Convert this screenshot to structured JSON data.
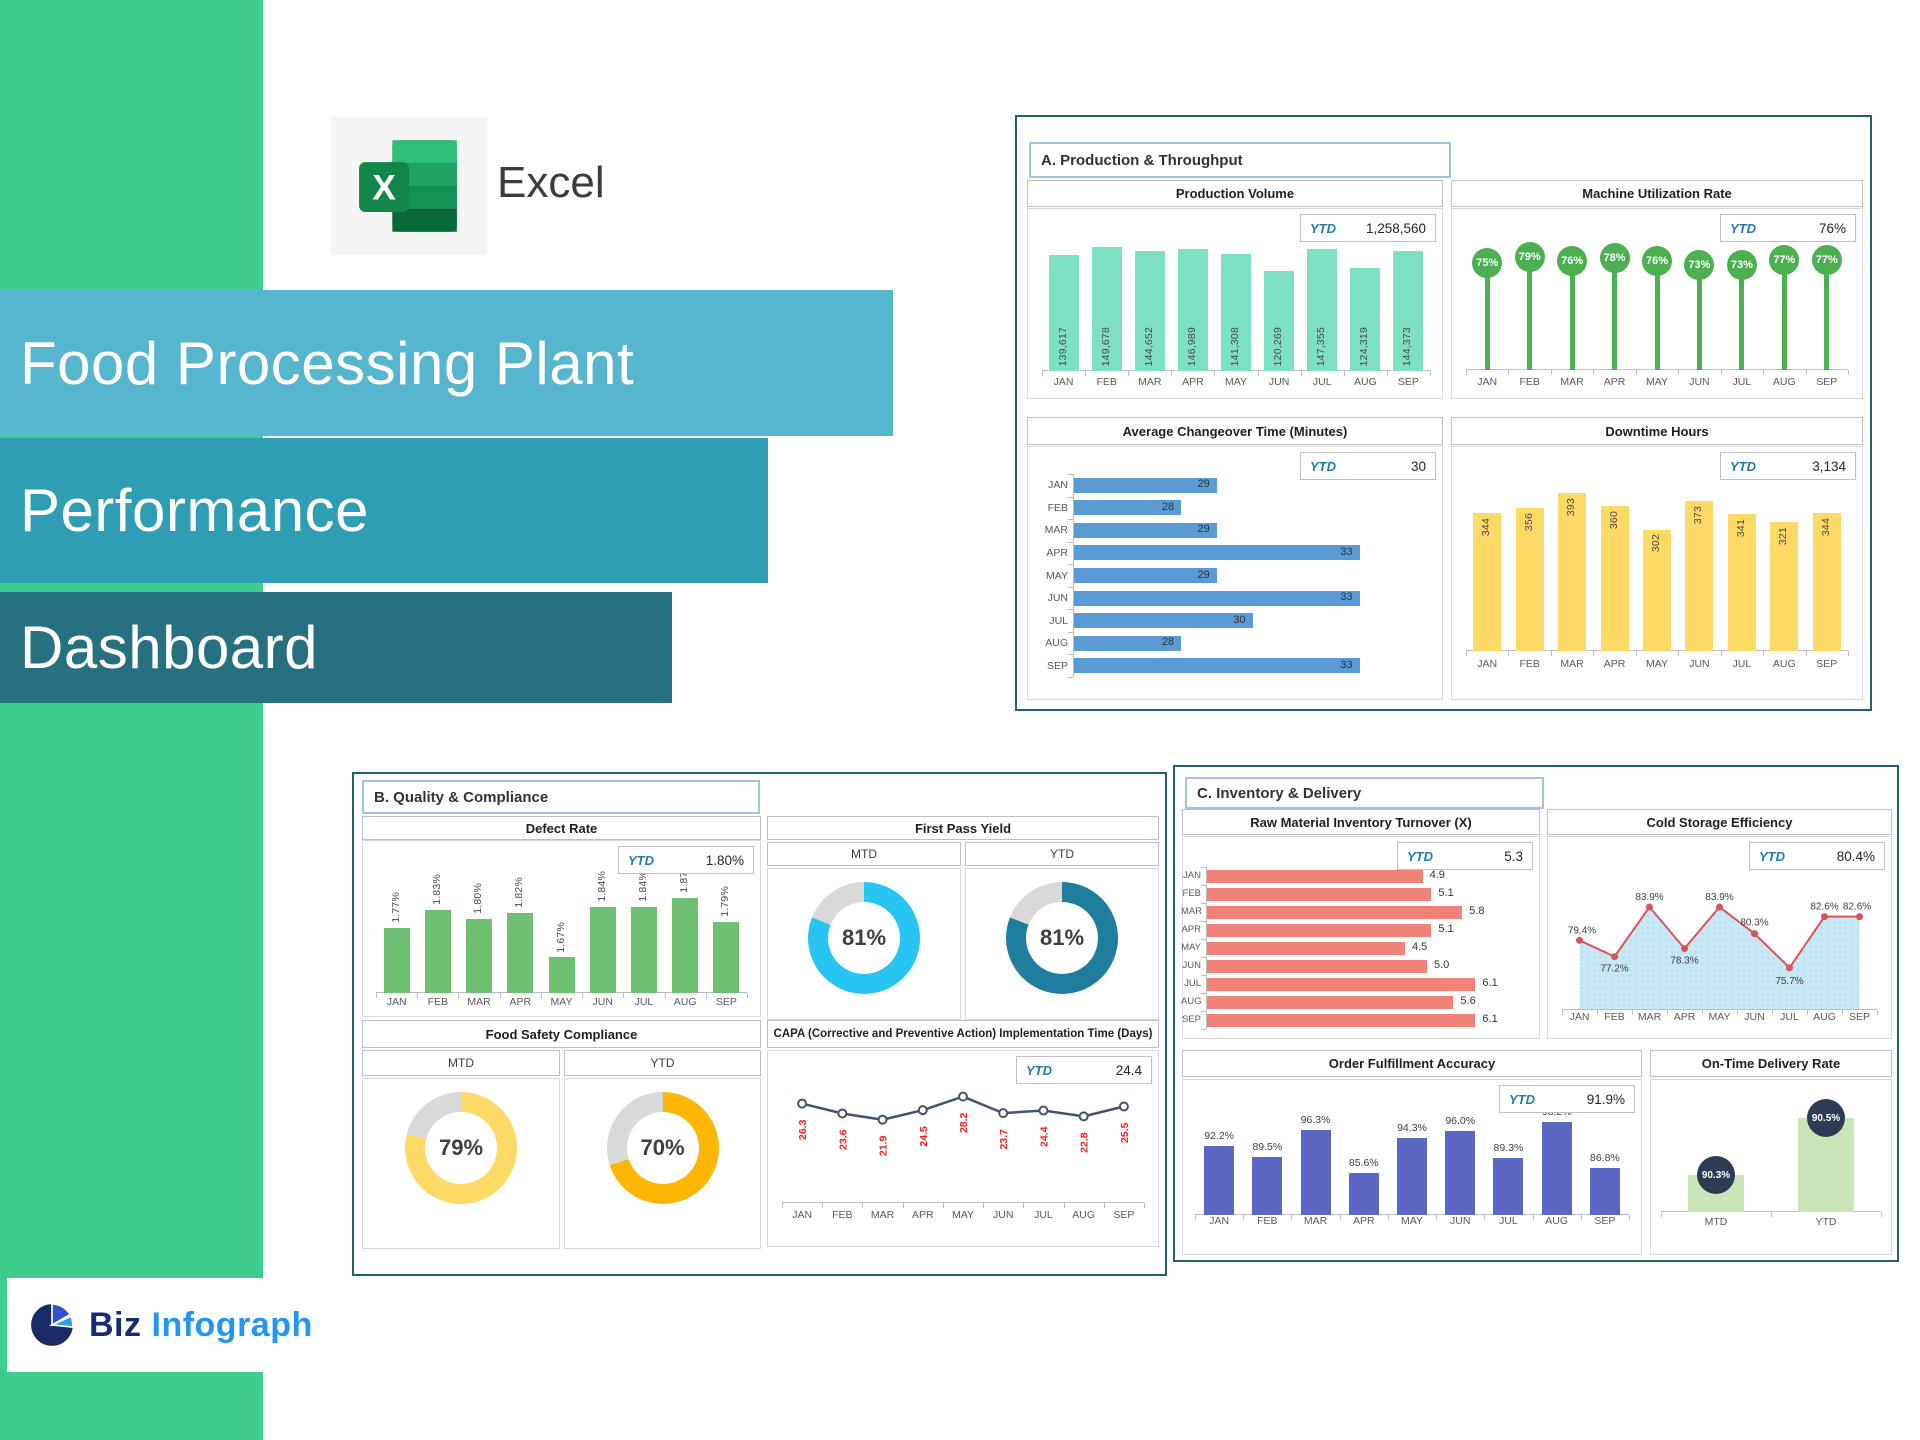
{
  "excel": {
    "label": "Excel",
    "logo_letter": "X"
  },
  "title_banner": {
    "line1": "Food Processing Plant",
    "line2": "Performance",
    "line3": "Dashboard"
  },
  "footer_logo": {
    "word1": "Biz",
    "word2": "Infograph"
  },
  "ytd_label": "YTD",
  "mtd_label": "MTD",
  "months": [
    "JAN",
    "FEB",
    "MAR",
    "APR",
    "MAY",
    "JUN",
    "JUL",
    "AUG",
    "SEP"
  ],
  "sections": {
    "a": {
      "header": "A. Production & Throughput"
    },
    "b": {
      "header": "B. Quality & Compliance"
    },
    "c": {
      "header": "C. Inventory & Delivery"
    }
  },
  "colors": {
    "sidebar_green": "#3ECD8C",
    "band1_blue": "#55B6CE",
    "band2_teal": "#2F9DB3",
    "band3_dark_teal": "#27707F",
    "panel_border": "#23616F",
    "section_border": "#9DC3E6",
    "ytd_text": "#1E7BAA"
  },
  "chart_data": [
    {
      "id": "production_volume",
      "type": "bar",
      "title": "Production Volume",
      "ytd": "1,258,560",
      "categories": [
        "JAN",
        "FEB",
        "MAR",
        "APR",
        "MAY",
        "JUN",
        "JUL",
        "AUG",
        "SEP"
      ],
      "values": [
        139617,
        149678,
        144652,
        146989,
        141308,
        120269,
        147355,
        124319,
        144373
      ],
      "labels": [
        "139,617",
        "149,678",
        "144,652",
        "146,989",
        "141,308",
        "120,269",
        "147,355",
        "124,319",
        "144,373"
      ],
      "color": "#7EE0C3",
      "ylim": [
        0,
        160000
      ],
      "label_pos": "in-bottom"
    },
    {
      "id": "machine_utilization",
      "type": "lollipop",
      "title": "Machine Utilization Rate",
      "ytd": "76%",
      "categories": [
        "JAN",
        "FEB",
        "MAR",
        "APR",
        "MAY",
        "JUN",
        "JUL",
        "AUG",
        "SEP"
      ],
      "values": [
        75,
        79,
        76,
        78,
        76,
        73,
        73,
        77,
        77
      ],
      "labels": [
        "75%",
        "79%",
        "76%",
        "78%",
        "76%",
        "73%",
        "73%",
        "77%",
        "77%"
      ],
      "color": "#4CAF50",
      "ylim": [
        0,
        90
      ]
    },
    {
      "id": "changeover_time",
      "type": "hbar",
      "title": "Average Changeover Time (Minutes)",
      "ytd": "30",
      "categories": [
        "JAN",
        "FEB",
        "MAR",
        "APR",
        "MAY",
        "JUN",
        "JUL",
        "AUG",
        "SEP"
      ],
      "values": [
        29,
        28,
        29,
        33,
        29,
        33,
        30,
        28,
        33
      ],
      "labels": [
        "29",
        "28",
        "29",
        "33",
        "29",
        "33",
        "30",
        "28",
        "33"
      ],
      "color": "#5B9BD5",
      "xlim": [
        25,
        35
      ],
      "label_pos": "inside"
    },
    {
      "id": "downtime_hours",
      "type": "bar",
      "title": "Downtime Hours",
      "ytd": "3,134",
      "categories": [
        "JAN",
        "FEB",
        "MAR",
        "APR",
        "MAY",
        "JUN",
        "JUL",
        "AUG",
        "SEP"
      ],
      "values": [
        344,
        356,
        393,
        360,
        302,
        373,
        341,
        321,
        344
      ],
      "labels": [
        "344",
        "356",
        "393",
        "360",
        "302",
        "373",
        "341",
        "321",
        "344"
      ],
      "color": "#FFD966",
      "ylim": [
        0,
        430
      ],
      "label_pos": "in-top"
    },
    {
      "id": "defect_rate",
      "type": "bar",
      "title": "Defect Rate",
      "ytd": "1.80%",
      "categories": [
        "JAN",
        "FEB",
        "MAR",
        "APR",
        "MAY",
        "JUN",
        "JUL",
        "AUG",
        "SEP"
      ],
      "values": [
        1.77,
        1.83,
        1.8,
        1.82,
        1.67,
        1.84,
        1.84,
        1.87,
        1.79
      ],
      "labels": [
        "1.77%",
        "1.83%",
        "1.80%",
        "1.82%",
        "1.67%",
        "1.84%",
        "1.84%",
        "1.87%",
        "1.79%"
      ],
      "color": "#6FBF72",
      "ylim": [
        1.55,
        1.9
      ],
      "label_pos": "above-rot"
    },
    {
      "id": "fpy_mtd",
      "type": "donut",
      "title": "First Pass Yield",
      "period": "MTD",
      "value": 81,
      "label": "81%",
      "color": "#29C5F2"
    },
    {
      "id": "fpy_ytd",
      "type": "donut",
      "period": "YTD",
      "value": 81,
      "label": "81%",
      "color": "#1F7E9E"
    },
    {
      "id": "fsc_mtd",
      "type": "donut",
      "title": "Food Safety Compliance",
      "period": "MTD",
      "value": 79,
      "label": "79%",
      "color": "#FFD966"
    },
    {
      "id": "fsc_ytd",
      "type": "donut",
      "period": "YTD",
      "value": 70,
      "label": "70%",
      "color": "#FFB600"
    },
    {
      "id": "capa_time",
      "type": "line",
      "title": "CAPA (Corrective and Preventive Action) Implementation Time (Days)",
      "ytd": "24.4",
      "categories": [
        "JAN",
        "FEB",
        "MAR",
        "APR",
        "MAY",
        "JUN",
        "JUL",
        "AUG",
        "SEP"
      ],
      "values": [
        26.3,
        23.6,
        21.9,
        24.5,
        28.2,
        23.7,
        24.4,
        22.8,
        25.5
      ],
      "labels": [
        "26.3",
        "23.6",
        "21.9",
        "24.5",
        "28.2",
        "23.7",
        "24.4",
        "22.8",
        "25.5"
      ],
      "line_color": "#44546A",
      "label_color": "#FF1A1A",
      "ylim": [
        0,
        30
      ]
    },
    {
      "id": "inventory_turnover",
      "type": "hbar",
      "title": "Raw Material Inventory Turnover (X)",
      "ytd": "5.3",
      "categories": [
        "JAN",
        "FEB",
        "MAR",
        "APR",
        "MAY",
        "JUN",
        "JUL",
        "AUG",
        "SEP"
      ],
      "values": [
        4.9,
        5.1,
        5.8,
        5.1,
        4.5,
        5.0,
        6.1,
        5.6,
        6.1
      ],
      "labels": [
        "4.9",
        "5.1",
        "5.8",
        "5.1",
        "4.5",
        "5.0",
        "6.1",
        "5.6",
        "6.1"
      ],
      "color": "#F0827A",
      "xlim": [
        0,
        7.25
      ],
      "label_pos": "outside"
    },
    {
      "id": "cold_storage",
      "type": "area",
      "title": "Cold Storage Efficiency",
      "ytd": "80.4%",
      "categories": [
        "JAN",
        "FEB",
        "MAR",
        "APR",
        "MAY",
        "JUN",
        "JUL",
        "AUG",
        "SEP"
      ],
      "values": [
        79.4,
        77.2,
        83.9,
        78.3,
        83.9,
        80.3,
        75.7,
        82.6,
        82.6
      ],
      "labels": [
        "79.4%",
        "77.2%",
        "83.9%",
        "78.3%",
        "83.9%",
        "80.3%",
        "75.7%",
        "82.6%",
        "82.6%"
      ],
      "line_color": "#D9545B",
      "fill_color": "#C9E8F5",
      "ylim": [
        70,
        87
      ]
    },
    {
      "id": "order_fulfillment",
      "type": "bar",
      "title": "Order Fulfillment Accuracy",
      "ytd": "91.9%",
      "categories": [
        "JAN",
        "FEB",
        "MAR",
        "APR",
        "MAY",
        "JUN",
        "JUL",
        "AUG",
        "SEP"
      ],
      "values": [
        92.2,
        89.5,
        96.3,
        85.6,
        94.3,
        96.0,
        89.3,
        98.2,
        86.8
      ],
      "labels": [
        "92.2%",
        "89.5%",
        "96.3%",
        "85.6%",
        "94.3%",
        "96.0%",
        "89.3%",
        "98.2%",
        "86.8%"
      ],
      "color": "#5A68C4",
      "ylim": [
        75,
        100
      ],
      "label_pos": "above"
    },
    {
      "id": "ontime_delivery",
      "type": "badge-bar",
      "title": "On-Time Delivery Rate",
      "categories": [
        "MTD",
        "YTD"
      ],
      "values": [
        90.3,
        90.5
      ],
      "labels": [
        "90.3%",
        "90.5%"
      ],
      "color": "#CBE4B8",
      "badge_color": "#2F3B52",
      "ylim": [
        90.17,
        90.56
      ]
    }
  ]
}
